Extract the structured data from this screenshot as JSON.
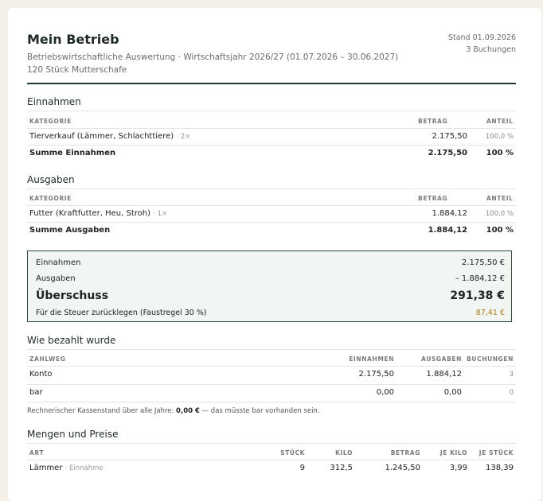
{
  "header": {
    "title": "Mein Betrieb",
    "subtitle": "Betriebswirtschaftliche Auswertung · Wirtschaftsjahr 2026/27 (01.07.2026 – 30.06.2027)",
    "herd": "120 Stück Mutterschafe",
    "date": "Stand 01.09.2026",
    "bookings": "3 Buchungen"
  },
  "income": {
    "title": "Einnahmen",
    "col_category": "KATEGORIE",
    "col_amount": "BETRAG",
    "col_share": "ANTEIL",
    "rows": [
      {
        "category": "Tierverkauf (Lämmer, Schlachttiere)",
        "count": "· 2×",
        "amount": "2.175,50",
        "share": "100,0 %"
      }
    ],
    "total_label": "Summe Einnahmen",
    "total_amount": "2.175,50",
    "total_share": "100 %"
  },
  "expenses": {
    "title": "Ausgaben",
    "col_category": "KATEGORIE",
    "col_amount": "BETRAG",
    "col_share": "ANTEIL",
    "rows": [
      {
        "category": "Futter (Kraftfutter, Heu, Stroh)",
        "count": "· 1×",
        "amount": "1.884,12",
        "share": "100,0 %"
      }
    ],
    "total_label": "Summe Ausgaben",
    "total_amount": "1.884,12",
    "total_share": "100 %"
  },
  "summary": {
    "income_label": "Einnahmen",
    "income_value": "2.175,50 €",
    "expenses_label": "Ausgaben",
    "expenses_value": "– 1.884,12 €",
    "surplus_label": "Überschuss",
    "surplus_value": "291,38 €",
    "tax_label": "Für die Steuer zurücklegen (Faustregel 30 %)",
    "tax_value": "87,41 €",
    "tax_color": "#b07a1a"
  },
  "payment": {
    "title": "Wie bezahlt wurde",
    "col_method": "ZAHLWEG",
    "col_income": "EINNAHMEN",
    "col_expenses": "AUSGABEN",
    "col_bookings": "BUCHUNGEN",
    "rows": [
      {
        "method": "Konto",
        "income": "2.175,50",
        "expenses": "1.884,12",
        "bookings": "3"
      },
      {
        "method": "bar",
        "income": "0,00",
        "expenses": "0,00",
        "bookings": "0"
      }
    ],
    "footnote_pre": "Rechnerischer Kassenstand über alle Jahre:",
    "footnote_value": "0,00 €",
    "footnote_post": "— das müsste bar vorhanden sein."
  },
  "quantities": {
    "title": "Mengen und Preise",
    "col_type": "ART",
    "col_pieces": "STÜCK",
    "col_kilo": "KILO",
    "col_amount": "BETRAG",
    "col_per_kilo": "JE KILO",
    "col_per_piece": "JE STÜCK",
    "rows": [
      {
        "type": "Lämmer",
        "note": "· Einnahme",
        "pieces": "9",
        "kilo": "312,5",
        "amount": "1.245,50",
        "per_kilo": "3,99",
        "per_piece": "138,39"
      }
    ]
  },
  "colors": {
    "accent": "#1f3a2c",
    "summary_bg": "#f1f6f2"
  }
}
